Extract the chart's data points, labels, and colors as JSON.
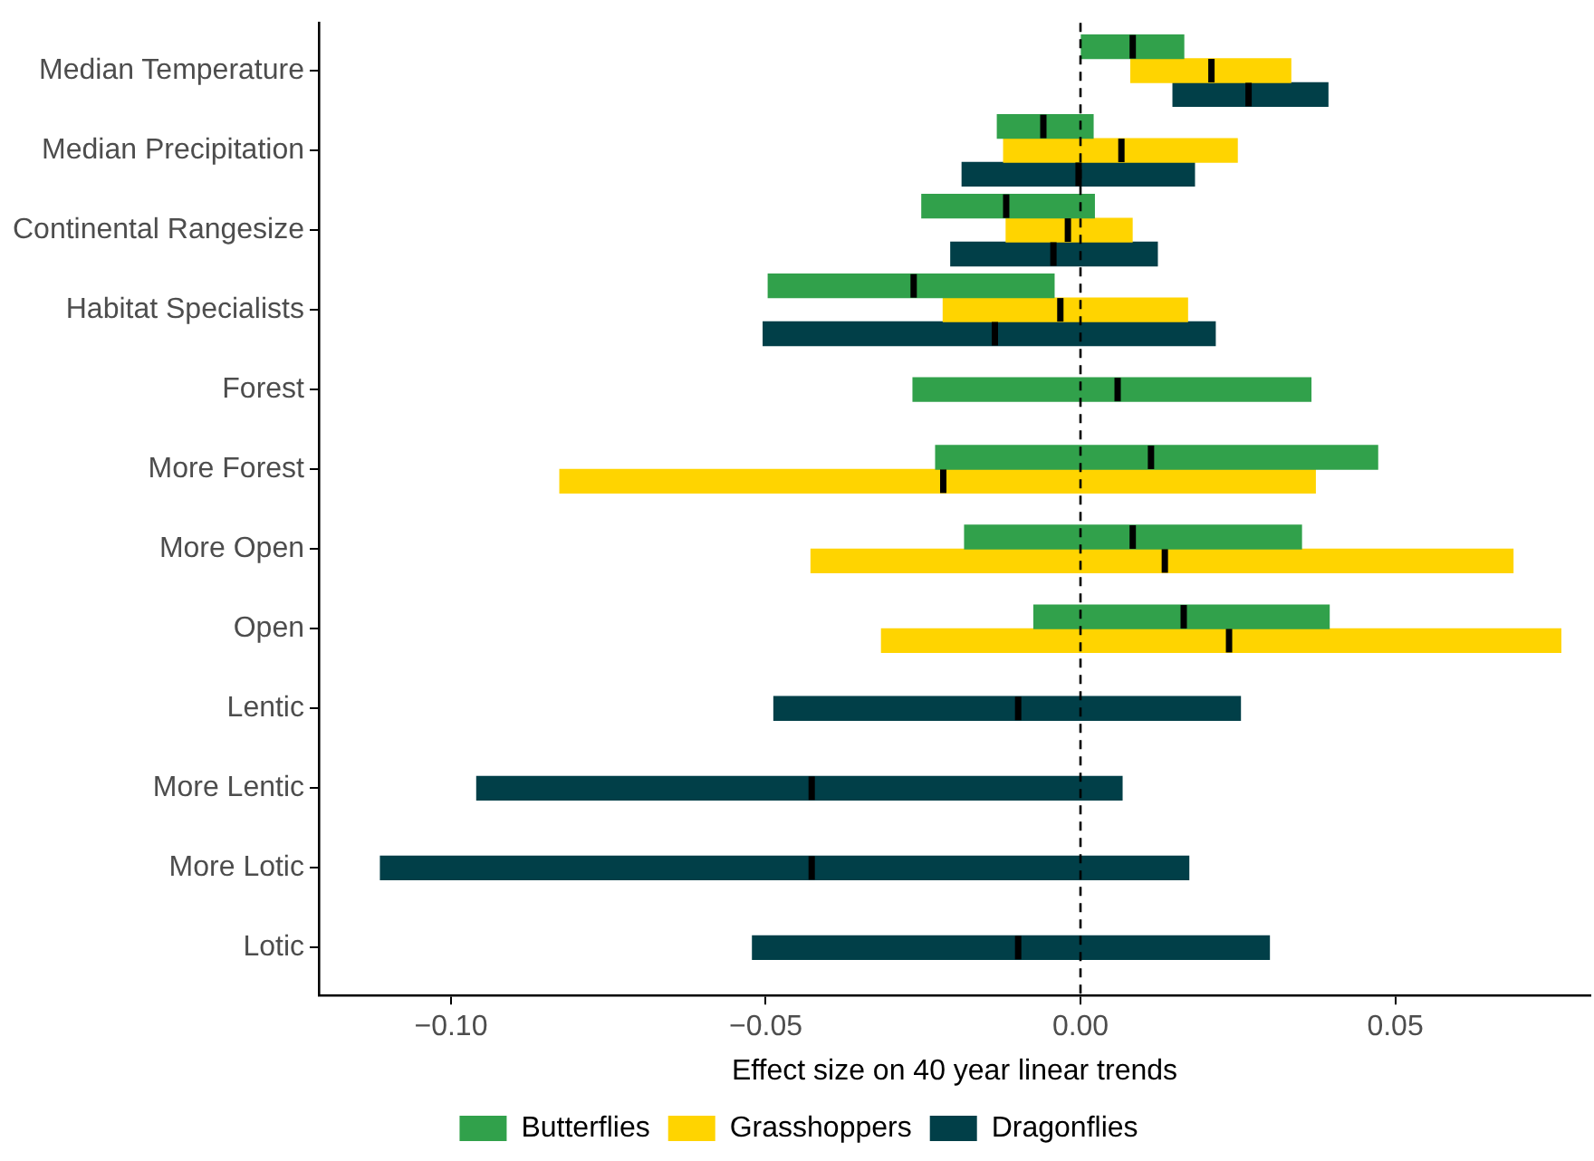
{
  "chart_data": {
    "type": "box",
    "orientation": "horizontal",
    "xlabel": "Effect size on 40 year linear trends",
    "categories": [
      "Median Temperature",
      "Median Precipitation",
      "Continental Rangesize",
      "Habitat Specialists",
      "Forest",
      "More Forest",
      "More Open",
      "Open",
      "Lentic",
      "More Lentic",
      "More Lotic",
      "Lotic"
    ],
    "xlim": [
      -0.121,
      0.081
    ],
    "xticks": [
      {
        "value": -0.1,
        "label": "−0.10"
      },
      {
        "value": -0.05,
        "label": "−0.05"
      },
      {
        "value": 0,
        "label": "0.00"
      },
      {
        "value": 0.05,
        "label": "0.05"
      }
    ],
    "legend": "bottom",
    "ref_lines": [
      {
        "axis": "x",
        "value": 0,
        "line_style": "dashed",
        "color": "#000000"
      }
    ],
    "series": [
      {
        "name": "Butterflies",
        "color": "#31a14b",
        "boxes": [
          {
            "low": 0.0,
            "q1": 0.0,
            "median": 0.0083,
            "q3": 0.0164,
            "high": 0.0164
          },
          {
            "low": -0.0132,
            "q1": -0.0132,
            "median": -0.0059,
            "q3": 0.002,
            "high": 0.002
          },
          {
            "low": -0.0252,
            "q1": -0.0252,
            "median": -0.0118,
            "q3": 0.0022,
            "high": 0.0022
          },
          {
            "low": -0.0496,
            "q1": -0.0496,
            "median": -0.0265,
            "q3": -0.0042,
            "high": -0.0042
          },
          {
            "low": -0.0266,
            "q1": -0.0266,
            "median": 0.0059,
            "q3": 0.0366,
            "high": 0.0366
          },
          {
            "low": -0.023,
            "q1": -0.023,
            "median": 0.0112,
            "q3": 0.0472,
            "high": 0.0472
          },
          {
            "low": -0.0184,
            "q1": -0.0184,
            "median": 0.0083,
            "q3": 0.0351,
            "high": 0.0351
          },
          {
            "low": -0.0074,
            "q1": -0.0074,
            "median": 0.0164,
            "q3": 0.0395,
            "high": 0.0395
          },
          null,
          null,
          null,
          null
        ]
      },
      {
        "name": "Grasshoppers",
        "color": "#ffd400",
        "boxes": [
          {
            "low": 0.008,
            "q1": 0.008,
            "median": 0.0208,
            "q3": 0.0334,
            "high": 0.0334
          },
          {
            "low": -0.0122,
            "q1": -0.0122,
            "median": 0.0065,
            "q3": 0.0249,
            "high": 0.0249
          },
          {
            "low": -0.0118,
            "q1": -0.0118,
            "median": -0.002,
            "q3": 0.0082,
            "high": 0.0082
          },
          {
            "low": -0.0218,
            "q1": -0.0218,
            "median": -0.0032,
            "q3": 0.017,
            "high": 0.017
          },
          null,
          {
            "low": -0.0827,
            "q1": -0.0827,
            "median": -0.0218,
            "q3": 0.0373,
            "high": 0.0373
          },
          {
            "low": -0.0428,
            "q1": -0.0428,
            "median": 0.0134,
            "q3": 0.0687,
            "high": 0.0687
          },
          {
            "low": -0.0316,
            "q1": -0.0316,
            "median": 0.0236,
            "q3": 0.0763,
            "high": 0.0763
          },
          null,
          null,
          null,
          null
        ]
      },
      {
        "name": "Dragonflies",
        "color": "#013f48",
        "boxes": [
          {
            "low": 0.0147,
            "q1": 0.0147,
            "median": 0.0267,
            "q3": 0.0393,
            "high": 0.0393
          },
          {
            "low": -0.0188,
            "q1": -0.0188,
            "median": -0.0003,
            "q3": 0.0181,
            "high": 0.0181
          },
          {
            "low": -0.0206,
            "q1": -0.0206,
            "median": -0.0043,
            "q3": 0.0122,
            "high": 0.0122
          },
          {
            "low": -0.0504,
            "q1": -0.0504,
            "median": -0.0136,
            "q3": 0.0214,
            "high": 0.0214
          },
          null,
          null,
          null,
          null,
          {
            "low": -0.0487,
            "q1": -0.0487,
            "median": -0.0099,
            "q3": 0.0254,
            "high": 0.0254
          },
          {
            "low": -0.0959,
            "q1": -0.0959,
            "median": -0.0427,
            "q3": 0.0066,
            "high": 0.0066
          },
          {
            "low": -0.1112,
            "q1": -0.1112,
            "median": -0.0427,
            "q3": 0.0172,
            "high": 0.0172
          },
          {
            "low": -0.0521,
            "q1": -0.0521,
            "median": -0.0099,
            "q3": 0.03,
            "high": 0.03
          }
        ]
      }
    ]
  }
}
